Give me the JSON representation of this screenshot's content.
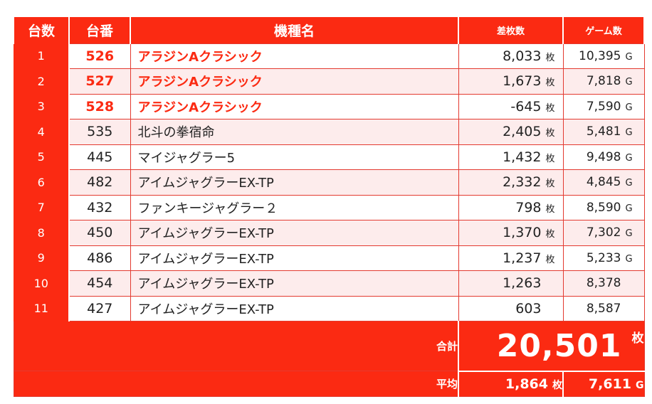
{
  "headers": {
    "rank": "台数",
    "machine_no": "台番",
    "model": "機種名",
    "diff": "差枚数",
    "games": "ゲーム数"
  },
  "units": {
    "medal": "枚",
    "game": "G"
  },
  "rows": [
    {
      "rank": "1",
      "no": "526",
      "model": "アラジンAクラシック",
      "diff": "8,033",
      "diff_unit": "枚",
      "games": "10,395",
      "games_unit": "G",
      "highlight": true
    },
    {
      "rank": "2",
      "no": "527",
      "model": "アラジンAクラシック",
      "diff": "1,673",
      "diff_unit": "枚",
      "games": "7,818",
      "games_unit": "G",
      "highlight": true
    },
    {
      "rank": "3",
      "no": "528",
      "model": "アラジンAクラシック",
      "diff": "-645",
      "diff_unit": "枚",
      "games": "7,590",
      "games_unit": "G",
      "highlight": true
    },
    {
      "rank": "4",
      "no": "535",
      "model": "北斗の拳宿命",
      "diff": "2,405",
      "diff_unit": "枚",
      "games": "5,481",
      "games_unit": "G",
      "highlight": false
    },
    {
      "rank": "5",
      "no": "445",
      "model": "マイジャグラー5",
      "diff": "1,432",
      "diff_unit": "枚",
      "games": "9,498",
      "games_unit": "G",
      "highlight": false
    },
    {
      "rank": "6",
      "no": "482",
      "model": "アイムジャグラーEX-TP",
      "diff": "2,332",
      "diff_unit": "枚",
      "games": "4,845",
      "games_unit": "G",
      "highlight": false
    },
    {
      "rank": "7",
      "no": "432",
      "model": "ファンキージャグラー２",
      "diff": "798",
      "diff_unit": "枚",
      "games": "8,590",
      "games_unit": "G",
      "highlight": false
    },
    {
      "rank": "8",
      "no": "450",
      "model": "アイムジャグラーEX-TP",
      "diff": "1,370",
      "diff_unit": "枚",
      "games": "7,302",
      "games_unit": "G",
      "highlight": false
    },
    {
      "rank": "9",
      "no": "486",
      "model": "アイムジャグラーEX-TP",
      "diff": "1,237",
      "diff_unit": "枚",
      "games": "5,233",
      "games_unit": "G",
      "highlight": false
    },
    {
      "rank": "10",
      "no": "454",
      "model": "アイムジャグラーEX-TP",
      "diff": "1,263",
      "diff_unit": "",
      "games": "8,378",
      "games_unit": "",
      "highlight": false
    },
    {
      "rank": "11",
      "no": "427",
      "model": "アイムジャグラーEX-TP",
      "diff": "603",
      "diff_unit": "",
      "games": "8,587",
      "games_unit": "",
      "highlight": false
    }
  ],
  "summary": {
    "total_label": "合計",
    "total_value": "20,501",
    "total_unit": "枚",
    "avg_label": "平均",
    "avg_diff": "1,864",
    "avg_diff_unit": "枚",
    "avg_games": "7,611",
    "avg_games_unit": "G"
  },
  "colors": {
    "accent": "#fb2a12",
    "row_alt": "#fdecec",
    "highlight_text": "#fb2a12"
  }
}
